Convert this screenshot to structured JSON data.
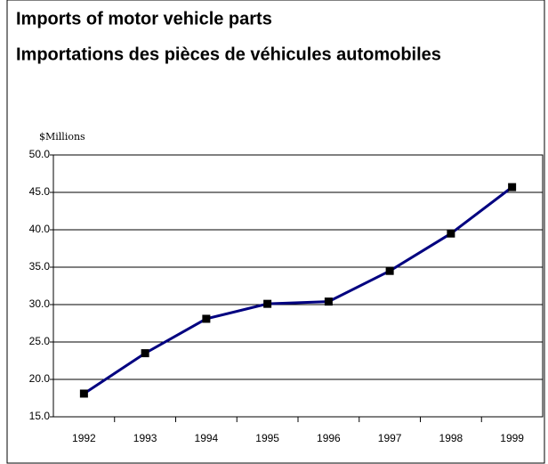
{
  "chart_data": {
    "type": "line",
    "title": "Imports of motor vehicle parts",
    "subtitle": "Importations des pièces de véhicules automobiles",
    "y_label": "$Millions",
    "categories": [
      "1992",
      "1993",
      "1994",
      "1995",
      "1996",
      "1997",
      "1998",
      "1999"
    ],
    "series": [
      {
        "name": "Imports",
        "color": "#000080",
        "marker_color": "#000000",
        "values": [
          18.1,
          23.5,
          28.1,
          30.1,
          30.4,
          34.5,
          39.5,
          45.7
        ]
      }
    ],
    "ylim": [
      15,
      50
    ],
    "yticks": [
      {
        "value": 15,
        "label": "15.0"
      },
      {
        "value": 20,
        "label": "20.0"
      },
      {
        "value": 25,
        "label": "25.0"
      },
      {
        "value": 30,
        "label": "30.0"
      },
      {
        "value": 35,
        "label": "35.0"
      },
      {
        "value": 40,
        "label": "40.0"
      },
      {
        "value": 45,
        "label": "45.0"
      },
      {
        "value": 50,
        "label": "50.0"
      }
    ],
    "grid": true
  }
}
